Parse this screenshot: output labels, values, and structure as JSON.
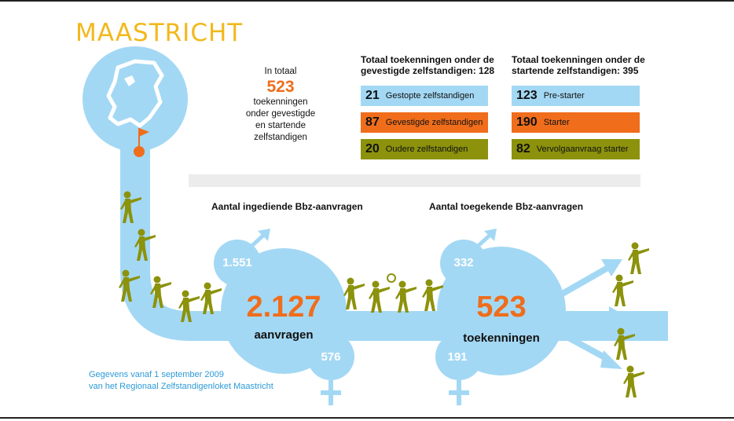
{
  "title": "MAASTRICHT",
  "total": {
    "intro": "In totaal",
    "value": "523",
    "line1": "toekenningen",
    "line2": "onder gevestigde",
    "line3": "en startende",
    "line4": "zelfstandigen"
  },
  "established": {
    "heading_line1": "Totaal toekenningen onder de",
    "heading_line2": "gevestigde zelfstandigen:  128",
    "rows": [
      {
        "value": "21",
        "label": "Gestopte zelfstandigen"
      },
      {
        "value": "87",
        "label": "Gevestigde zelfstandigen"
      },
      {
        "value": "20",
        "label": "Oudere zelfstandigen"
      }
    ]
  },
  "starters": {
    "heading_line1": "Totaal toekenningen onder de",
    "heading_line2": "startende zelfstandigen: 395",
    "rows": [
      {
        "value": "123",
        "label": "Pre-starter"
      },
      {
        "value": "190",
        "label": "Starter"
      },
      {
        "value": "82",
        "label": "Vervolgaanvraag starter"
      }
    ]
  },
  "applications": {
    "label": "Aantal ingediende Bbz-aanvragen",
    "male": "1.551",
    "total": "2.127",
    "unit": "aanvragen",
    "female": "576"
  },
  "grants": {
    "label": "Aantal toegekende Bbz-aanvragen",
    "male": "332",
    "total": "523",
    "unit": "toekenningen",
    "female": "191"
  },
  "footer": {
    "line1": "Gegevens vanaf 1 september 2009",
    "line2": "van het Regionaal Zelfstandigenloket Maastricht"
  },
  "colors": {
    "light_blue": "#a3d8f4",
    "orange": "#ef6d1b",
    "olive": "#8c920b",
    "yellow_title": "#f2b81c",
    "footer_blue": "#2c9ad6"
  },
  "icons": [
    "netherlands-map-icon",
    "location-flag-icon",
    "male-symbol-icon",
    "female-symbol-icon",
    "person-pointing-icon",
    "magnifier-person-icon",
    "arrow-icon"
  ]
}
